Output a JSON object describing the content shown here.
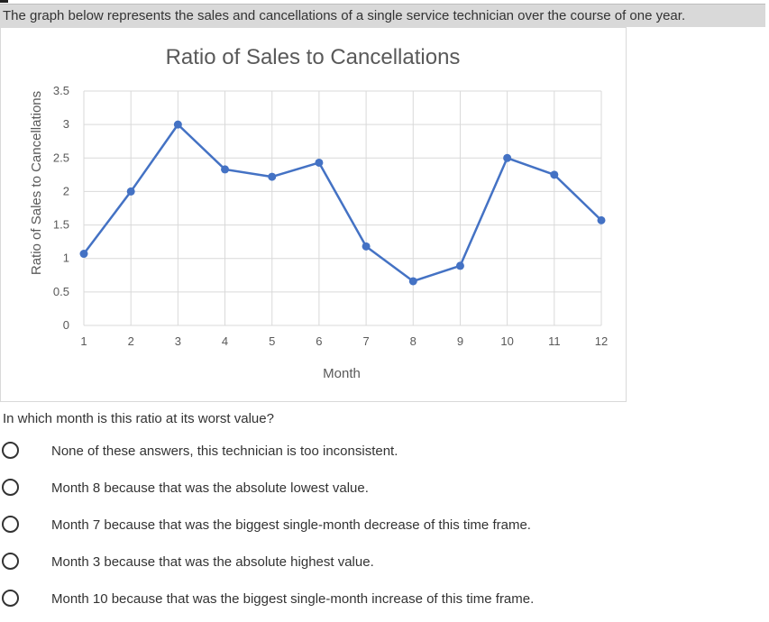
{
  "prompt": "The graph below represents the sales and cancellations of a single service technician over the course of one year.",
  "question": "In which month is this ratio at its worst value?",
  "options": [
    {
      "label": "None of these answers, this technician is too inconsistent."
    },
    {
      "label": "Month 8 because that was the absolute lowest value."
    },
    {
      "label": "Month 7 because that was the biggest single-month decrease of this time frame."
    },
    {
      "label": "Month 3 because that was the absolute highest value."
    },
    {
      "label": "Month 10 because that was the biggest single-month increase of this time frame."
    }
  ],
  "colors": {
    "line": "#4472c4",
    "grid": "#d9d9d9",
    "text": "#595959"
  },
  "chart_data": {
    "type": "line",
    "title": "Ratio of Sales to Cancellations",
    "xlabel": "Month",
    "ylabel": "Ratio of Sales to Cancellations",
    "x": [
      1,
      2,
      3,
      4,
      5,
      6,
      7,
      8,
      9,
      10,
      11,
      12
    ],
    "x_tick_labels": [
      "1",
      "2",
      "3",
      "4",
      "5",
      "6",
      "7",
      "8",
      "9",
      "10",
      "11",
      "12"
    ],
    "y_tick_labels": [
      "0",
      "0.5",
      "1",
      "1.5",
      "2",
      "2.5",
      "3",
      "3.5"
    ],
    "y_ticks": [
      0,
      0.5,
      1,
      1.5,
      2,
      2.5,
      3,
      3.5
    ],
    "ylim": [
      0,
      3.5
    ],
    "grid": true,
    "legend": "none",
    "series": [
      {
        "values": [
          1.07,
          2.0,
          3.0,
          2.33,
          2.22,
          2.43,
          1.18,
          0.66,
          0.89,
          2.5,
          2.25,
          1.57
        ]
      }
    ]
  }
}
